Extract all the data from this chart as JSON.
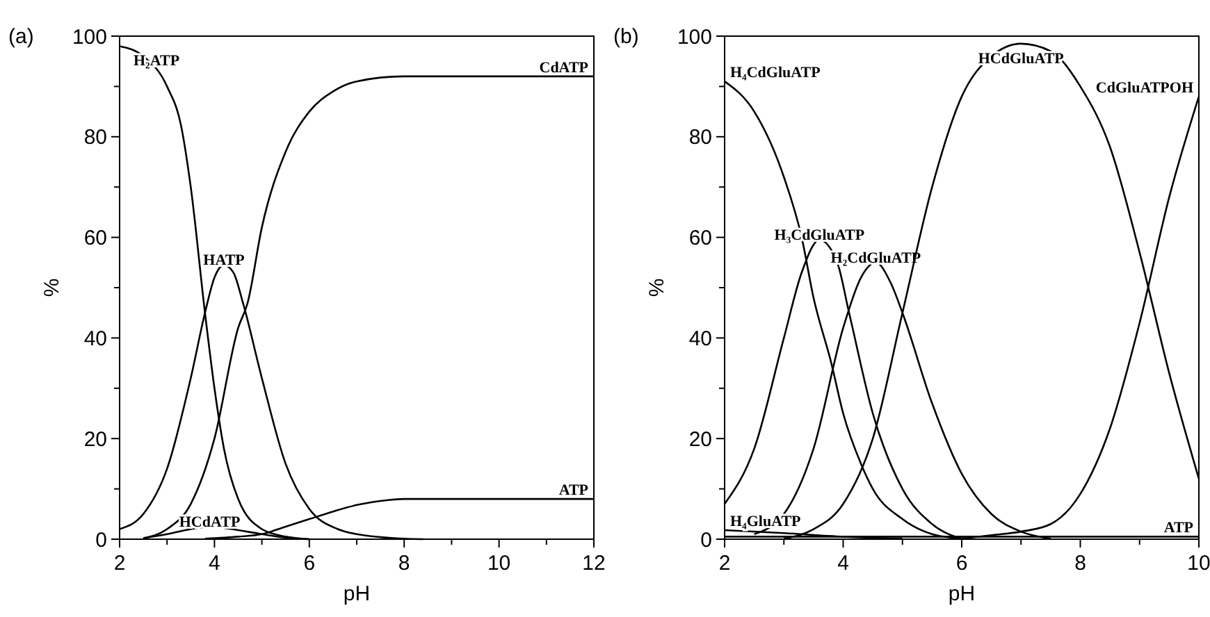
{
  "chart_data": [
    {
      "type": "line",
      "title": "(a)",
      "xlabel": "pH",
      "ylabel": "%",
      "xlim": [
        2,
        12
      ],
      "ylim": [
        0,
        100
      ],
      "xticks": [
        2,
        4,
        6,
        8,
        10,
        12
      ],
      "yticks": [
        0,
        20,
        40,
        60,
        80,
        100
      ],
      "grid": false,
      "marker": "none",
      "line_style": "solid",
      "series": [
        {
          "name": "H₂ATP",
          "color": "#000000",
          "x": [
            2,
            2.5,
            3,
            3.3,
            3.5,
            3.8,
            4,
            4.2,
            4.5,
            5,
            5.5,
            6
          ],
          "values": [
            98,
            96,
            90,
            82,
            70,
            45,
            30,
            18,
            8,
            2,
            0.5,
            0
          ]
        },
        {
          "name": "HATP",
          "color": "#000000",
          "x": [
            2,
            2.5,
            3,
            3.5,
            3.8,
            4,
            4.2,
            4.4,
            4.6,
            5,
            5.5,
            6,
            6.6,
            7,
            8,
            8.4
          ],
          "values": [
            2,
            5,
            14,
            32,
            45,
            52,
            54.5,
            53,
            47,
            32,
            15,
            6,
            2,
            1,
            0.1,
            0
          ]
        },
        {
          "name": "CdATP",
          "color": "#000000",
          "x": [
            2.5,
            3,
            3.5,
            4,
            4.5,
            4.7,
            5,
            5.5,
            6,
            6.5,
            7,
            8,
            12
          ],
          "values": [
            0.2,
            2,
            7,
            20,
            42,
            47,
            62,
            77,
            85,
            89,
            91,
            92,
            92
          ]
        },
        {
          "name": "ATP",
          "color": "#000000",
          "x": [
            3.8,
            4.5,
            5,
            5.5,
            6,
            6.5,
            7,
            7.5,
            8,
            12
          ],
          "values": [
            0.1,
            0.5,
            1,
            2.5,
            4,
            5.5,
            6.8,
            7.6,
            8,
            8
          ]
        },
        {
          "name": "HCdATP",
          "color": "#000000",
          "x": [
            2.5,
            3,
            3.5,
            3.9,
            4.5,
            5,
            5.5,
            6
          ],
          "values": [
            0.2,
            1,
            2,
            2.5,
            1.8,
            1,
            0.3,
            0
          ]
        }
      ]
    },
    {
      "type": "line",
      "title": "(b)",
      "xlabel": "pH",
      "ylabel": "%",
      "xlim": [
        2,
        10
      ],
      "ylim": [
        0,
        100
      ],
      "xticks": [
        2,
        4,
        6,
        8,
        10
      ],
      "yticks": [
        0,
        20,
        40,
        60,
        80,
        100
      ],
      "grid": false,
      "marker": "none",
      "line_style": "solid",
      "series": [
        {
          "name": "H₄CdGluATP",
          "color": "#000000",
          "x": [
            2,
            2.5,
            3,
            3.3,
            3.5,
            3.8,
            4,
            4.3,
            4.5,
            5,
            5.5,
            6
          ],
          "values": [
            91,
            85,
            72,
            60,
            48,
            35,
            25,
            15,
            10,
            4,
            1,
            0.1
          ]
        },
        {
          "name": "H₃CdGluATP",
          "color": "#000000",
          "x": [
            2,
            2.5,
            3,
            3.3,
            3.6,
            3.9,
            4.1,
            4.5,
            5,
            5.5,
            6
          ],
          "values": [
            7,
            18,
            40,
            53,
            59.5,
            55,
            45,
            25,
            10,
            3,
            0.1
          ]
        },
        {
          "name": "H₂CdGluATP",
          "color": "#000000",
          "x": [
            2.5,
            3,
            3.5,
            4,
            4.3,
            4.55,
            4.8,
            5,
            5.5,
            6,
            6.5,
            7,
            7.5
          ],
          "values": [
            1,
            5,
            18,
            42,
            52,
            55,
            51,
            45,
            27,
            13,
            5,
            1.5,
            0.1
          ]
        },
        {
          "name": "HCdGluATP",
          "color": "#000000",
          "x": [
            3,
            3.5,
            4,
            4.5,
            5,
            5.5,
            6,
            6.5,
            7,
            7.5,
            8,
            8.5,
            9,
            9.5,
            10
          ],
          "values": [
            0.1,
            2,
            7,
            20,
            45,
            70,
            88,
            96,
            98.5,
            97,
            90,
            78,
            57,
            33,
            12
          ]
        },
        {
          "name": "CdGluATPOH",
          "color": "#000000",
          "x": [
            6,
            6.5,
            7,
            7.5,
            8,
            8.5,
            9,
            9.5,
            10
          ],
          "values": [
            0.1,
            0.8,
            1.5,
            3,
            9,
            22,
            43,
            68,
            88
          ]
        },
        {
          "name": "H₄GluATP",
          "color": "#000000",
          "x": [
            2,
            3,
            4,
            5
          ],
          "values": [
            1.8,
            1.2,
            0.5,
            0.1
          ]
        },
        {
          "name": "ATP",
          "color": "#000000",
          "x": [
            2,
            10
          ],
          "values": [
            0.5,
            0.5
          ]
        }
      ]
    }
  ]
}
